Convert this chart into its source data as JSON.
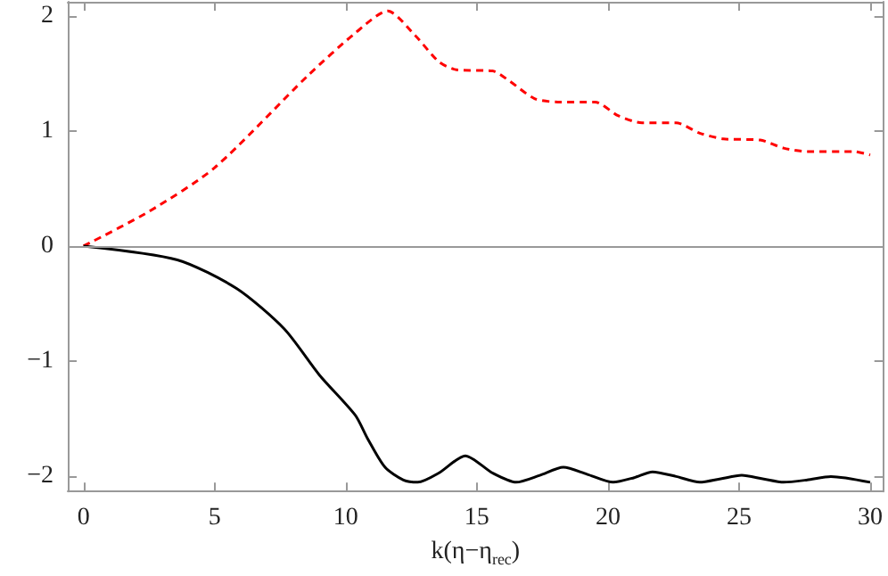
{
  "chart_data": {
    "type": "line",
    "xlabel": "k(η−η$_{rec}$)",
    "xlim": [
      -0.6,
      30.5
    ],
    "xticks": [
      0,
      5,
      10,
      15,
      20,
      25,
      30
    ],
    "ylim": [
      -2.13,
      2.12
    ],
    "yticks": [
      -2,
      -1,
      0,
      1,
      2
    ],
    "grid": false,
    "marker": "none",
    "ref_lines": [
      {
        "axis": "y",
        "value": 0,
        "color": "#999999"
      }
    ],
    "series": [
      {
        "color": "#ff0000",
        "line_style": "dashed",
        "x": [
          0,
          2.5,
          5,
          8.56,
          10.37,
          11.6,
          12.64,
          13.55,
          14.22,
          15.6,
          16.26,
          17.2,
          18.1,
          19.5,
          20.4,
          21.3,
          22.6,
          23.5,
          24.4,
          25.8,
          26.7,
          27.6,
          29.4,
          30
        ],
        "values": [
          0,
          0.3,
          0.68,
          1.48,
          1.85,
          2.04,
          1.83,
          1.6,
          1.53,
          1.52,
          1.43,
          1.28,
          1.25,
          1.25,
          1.13,
          1.07,
          1.07,
          0.98,
          0.93,
          0.92,
          0.85,
          0.82,
          0.82,
          0.79
        ]
      },
      {
        "color": "#000000",
        "line_style": "solid",
        "x": [
          0,
          3.58,
          5.85,
          7.66,
          9.0,
          10.37,
          10.83,
          11.5,
          12.2,
          12.75,
          13.55,
          14.56,
          15.6,
          16.5,
          17.4,
          18.3,
          19.2,
          20.2,
          21.0,
          21.7,
          22.6,
          23.5,
          24.3,
          25.1,
          25.9,
          26.7,
          27.6,
          28.5,
          30
        ],
        "values": [
          0,
          -0.12,
          -0.37,
          -0.72,
          -1.12,
          -1.47,
          -1.67,
          -1.92,
          -2.03,
          -2.05,
          -1.97,
          -1.82,
          -1.97,
          -2.05,
          -1.99,
          -1.92,
          -1.98,
          -2.05,
          -2.01,
          -1.96,
          -2.0,
          -2.05,
          -2.02,
          -1.99,
          -2.02,
          -2.05,
          -2.03,
          -2.0,
          -2.05
        ]
      }
    ]
  }
}
